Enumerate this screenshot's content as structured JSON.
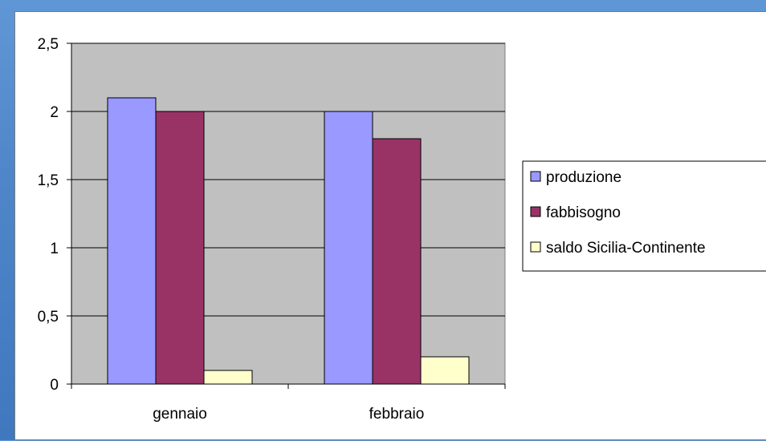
{
  "chart_data": {
    "type": "bar",
    "categories": [
      "gennaio",
      "febbraio"
    ],
    "series": [
      {
        "name": "produzione",
        "color": "#9999ff",
        "values": [
          2.1,
          2.0
        ]
      },
      {
        "name": "fabbisogno",
        "color": "#993366",
        "values": [
          2.0,
          1.8
        ]
      },
      {
        "name": "saldo Sicilia-Continente",
        "color": "#ffffcc",
        "values": [
          0.1,
          0.2
        ]
      }
    ],
    "y_ticks": [
      "0",
      "0,5",
      "1",
      "1,5",
      "2",
      "2,5"
    ],
    "ylim": [
      0,
      2.5
    ],
    "grid": true,
    "plot_background": "#c0c0c0",
    "legend_position": "right",
    "title": "",
    "xlabel": "",
    "ylabel": ""
  }
}
